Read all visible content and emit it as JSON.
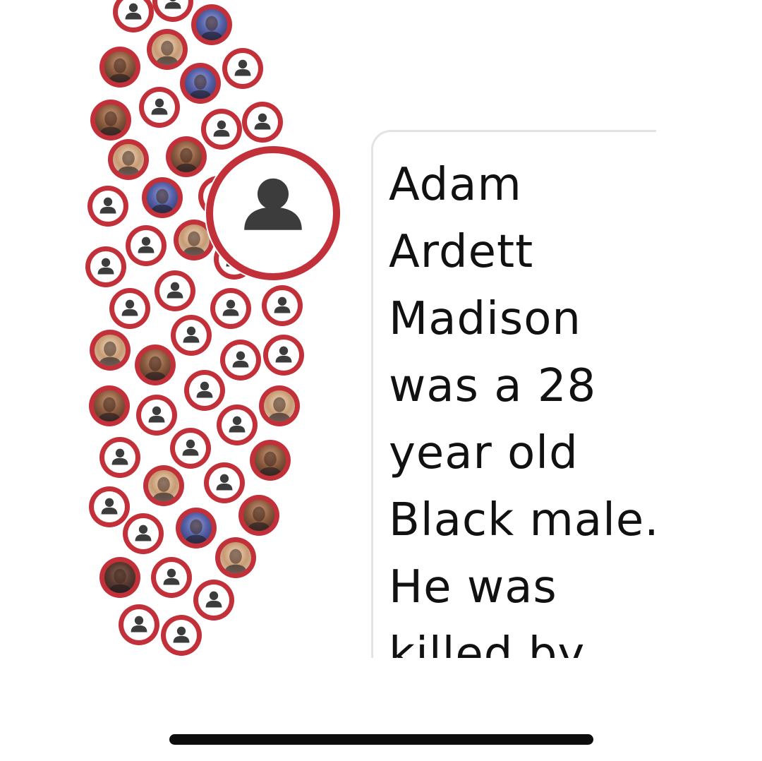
{
  "colors": {
    "bubble_ring": "#c2303a",
    "card_border": "#e3e3e3",
    "text": "#111111",
    "home_indicator": "#0d0d0d"
  },
  "cluster": {
    "placeholder_icon": "person-silhouette-icon",
    "bubbles": [
      {
        "kind": "placeholder"
      },
      {
        "kind": "placeholder"
      },
      {
        "kind": "photo"
      },
      {
        "kind": "photo"
      },
      {
        "kind": "photo"
      },
      {
        "kind": "placeholder"
      },
      {
        "kind": "photo"
      },
      {
        "kind": "placeholder"
      },
      {
        "kind": "photo"
      },
      {
        "kind": "placeholder"
      },
      {
        "kind": "placeholder"
      },
      {
        "kind": "photo"
      },
      {
        "kind": "photo"
      },
      {
        "kind": "placeholder"
      },
      {
        "kind": "photo"
      },
      {
        "kind": "photo"
      },
      {
        "kind": "placeholder"
      },
      {
        "kind": "placeholder"
      },
      {
        "kind": "placeholder"
      },
      {
        "kind": "placeholder"
      },
      {
        "kind": "placeholder"
      },
      {
        "kind": "placeholder"
      },
      {
        "kind": "placeholder"
      },
      {
        "kind": "photo"
      },
      {
        "kind": "photo"
      },
      {
        "kind": "placeholder"
      },
      {
        "kind": "placeholder"
      },
      {
        "kind": "placeholder"
      },
      {
        "kind": "photo"
      },
      {
        "kind": "placeholder"
      },
      {
        "kind": "placeholder"
      },
      {
        "kind": "photo"
      },
      {
        "kind": "photo"
      },
      {
        "kind": "placeholder"
      },
      {
        "kind": "placeholder"
      },
      {
        "kind": "photo"
      },
      {
        "kind": "placeholder"
      },
      {
        "kind": "placeholder"
      },
      {
        "kind": "photo"
      },
      {
        "kind": "placeholder"
      },
      {
        "kind": "photo"
      },
      {
        "kind": "photo"
      },
      {
        "kind": "placeholder"
      },
      {
        "kind": "photo"
      },
      {
        "kind": "placeholder"
      },
      {
        "kind": "placeholder"
      },
      {
        "kind": "placeholder"
      },
      {
        "kind": "placeholder"
      },
      {
        "kind": "placeholder"
      }
    ],
    "selected": {
      "kind": "placeholder",
      "name": "Adam Ardett Madison"
    }
  },
  "detail": {
    "text_lines": [
      "Adam",
      "Ardett",
      "Madison",
      "was a 28",
      "year old",
      "Black male.",
      "He was",
      "killed by"
    ]
  }
}
